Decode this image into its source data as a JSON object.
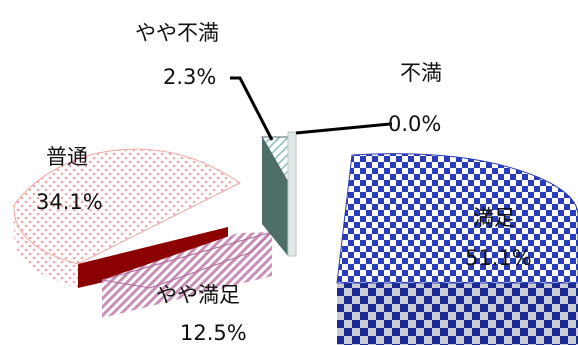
{
  "chart_data": {
    "type": "pie",
    "style": "3d-exploded",
    "title": "",
    "slices": [
      {
        "name": "満足",
        "value": 51.1,
        "label": "51.1%",
        "top_color": "#2a3db8",
        "side_color": "#1c2a90",
        "fill_pattern": "checker"
      },
      {
        "name": "やや満足",
        "value": 12.5,
        "label": "12.5%",
        "top_color": "#c890b8",
        "side_color": "#b06a9c",
        "fill_pattern": "diagonal-hatch"
      },
      {
        "name": "普通",
        "value": 34.1,
        "label": "34.1%",
        "top_color": "#f2a6a6",
        "side_color": "#8b0000",
        "fill_pattern": "dotted"
      },
      {
        "name": "やや不満",
        "value": 2.3,
        "label": "2.3%",
        "top_color": "#cfe8ec",
        "side_color": "#4e6e6a",
        "fill_pattern": "light-diagonal"
      },
      {
        "name": "不満",
        "value": 0.0,
        "label": "0.0%",
        "top_color": "#dfe8e6",
        "side_color": "#b9c6c3",
        "fill_pattern": "light"
      }
    ]
  }
}
